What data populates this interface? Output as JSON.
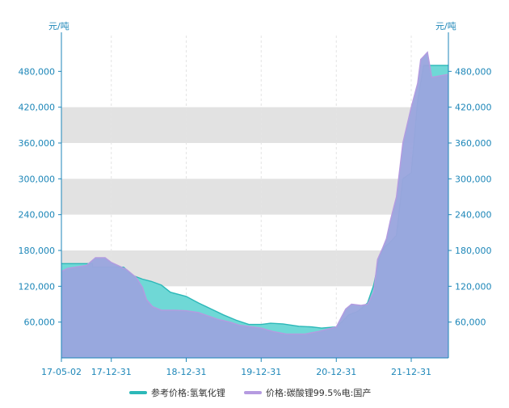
{
  "chart_data": {
    "type": "area",
    "y_unit_left": "元/吨",
    "y_unit_right": "元/吨",
    "ylim": [
      0,
      540000
    ],
    "yticks": [
      60000,
      120000,
      180000,
      240000,
      300000,
      360000,
      420000,
      480000
    ],
    "ytick_labels": [
      "60,000",
      "120,000",
      "180,000",
      "240,000",
      "300,000",
      "360,000",
      "420,000",
      "480,000"
    ],
    "xlim": [
      "2017-05-02",
      "2022-06-30"
    ],
    "xticks": [
      "2017-05-02",
      "2017-12-31",
      "2018-12-31",
      "2019-12-31",
      "2020-12-31",
      "2021-12-31"
    ],
    "xtick_labels": [
      "17-05-02",
      "17-12-31",
      "18-12-31",
      "19-12-31",
      "20-12-31",
      "21-12-31"
    ],
    "bands": [
      [
        120000,
        180000
      ],
      [
        240000,
        300000
      ],
      [
        360000,
        420000
      ]
    ],
    "grid_x": true,
    "legend_position": "bottom",
    "series": [
      {
        "name": "参考价格:氢氧化锂",
        "color": "#3cc8c8",
        "points": [
          [
            "2017-05-02",
            158000
          ],
          [
            "2017-09-30",
            158000
          ],
          [
            "2017-10-01",
            152000
          ],
          [
            "2018-03-01",
            152000
          ],
          [
            "2018-04-15",
            138000
          ],
          [
            "2018-06-01",
            132000
          ],
          [
            "2018-07-15",
            128000
          ],
          [
            "2018-09-01",
            122000
          ],
          [
            "2018-10-15",
            110000
          ],
          [
            "2018-12-31",
            103000
          ],
          [
            "2019-03-01",
            92000
          ],
          [
            "2019-05-01",
            82000
          ],
          [
            "2019-07-01",
            72000
          ],
          [
            "2019-09-01",
            63000
          ],
          [
            "2019-11-01",
            56000
          ],
          [
            "2019-12-31",
            56000
          ],
          [
            "2020-02-15",
            58000
          ],
          [
            "2020-04-15",
            57000
          ],
          [
            "2020-07-01",
            53000
          ],
          [
            "2020-09-01",
            52000
          ],
          [
            "2020-10-20",
            50000
          ],
          [
            "2020-12-31",
            52000
          ],
          [
            "2021-02-01",
            62000
          ],
          [
            "2021-03-01",
            72000
          ],
          [
            "2021-04-15",
            78000
          ],
          [
            "2021-06-01",
            92000
          ],
          [
            "2021-07-01",
            122000
          ],
          [
            "2021-08-01",
            172000
          ],
          [
            "2021-08-20",
            185000
          ],
          [
            "2021-09-15",
            192000
          ],
          [
            "2021-10-20",
            205000
          ],
          [
            "2021-11-20",
            300000
          ],
          [
            "2021-12-31",
            310000
          ],
          [
            "2022-01-31",
            430000
          ],
          [
            "2022-03-01",
            490000
          ],
          [
            "2022-06-30",
            490000
          ]
        ]
      },
      {
        "name": "价格:碳酸锂99.5%电:国产",
        "color": "#b59be0",
        "points": [
          [
            "2017-05-02",
            145000
          ],
          [
            "2017-06-01",
            150000
          ],
          [
            "2017-09-01",
            155000
          ],
          [
            "2017-10-15",
            168000
          ],
          [
            "2017-12-01",
            168000
          ],
          [
            "2017-12-31",
            160000
          ],
          [
            "2018-02-01",
            155000
          ],
          [
            "2018-03-15",
            148000
          ],
          [
            "2018-05-01",
            135000
          ],
          [
            "2018-06-01",
            118000
          ],
          [
            "2018-06-20",
            98000
          ],
          [
            "2018-07-20",
            86000
          ],
          [
            "2018-09-01",
            80000
          ],
          [
            "2018-11-01",
            80000
          ],
          [
            "2018-12-31",
            79000
          ],
          [
            "2019-03-01",
            76000
          ],
          [
            "2019-06-01",
            65000
          ],
          [
            "2019-08-01",
            60000
          ],
          [
            "2019-09-15",
            55000
          ],
          [
            "2019-12-31",
            50000
          ],
          [
            "2020-03-01",
            44000
          ],
          [
            "2020-05-01",
            40000
          ],
          [
            "2020-08-01",
            40000
          ],
          [
            "2020-10-01",
            44000
          ],
          [
            "2020-12-31",
            52000
          ],
          [
            "2021-01-20",
            65000
          ],
          [
            "2021-02-15",
            82000
          ],
          [
            "2021-03-15",
            90000
          ],
          [
            "2021-05-01",
            88000
          ],
          [
            "2021-06-01",
            90000
          ],
          [
            "2021-07-01",
            110000
          ],
          [
            "2021-07-20",
            165000
          ],
          [
            "2021-08-15",
            185000
          ],
          [
            "2021-09-01",
            200000
          ],
          [
            "2021-09-20",
            230000
          ],
          [
            "2021-10-20",
            270000
          ],
          [
            "2021-11-20",
            360000
          ],
          [
            "2021-12-31",
            420000
          ],
          [
            "2022-01-31",
            460000
          ],
          [
            "2022-02-15",
            500000
          ],
          [
            "2022-03-01",
            505000
          ],
          [
            "2022-03-20",
            512000
          ],
          [
            "2022-04-10",
            470000
          ],
          [
            "2022-06-30",
            475000
          ]
        ]
      }
    ]
  }
}
